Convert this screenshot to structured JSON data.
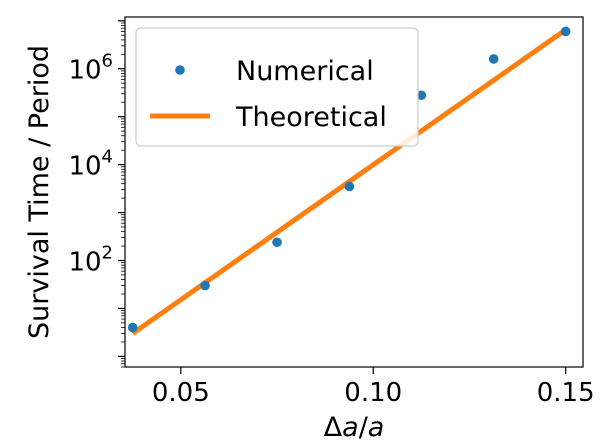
{
  "chart_data": {
    "type": "line",
    "xlabel": "Δa/a",
    "ylabel": "Survival Time / Period",
    "xlim": [
      0.0355,
      0.1545
    ],
    "ylim": [
      0.6,
      12000000
    ],
    "yscale": "log",
    "x_ticks": [
      {
        "value": 0.05,
        "label": "0.05"
      },
      {
        "value": 0.1,
        "label": "0.10"
      },
      {
        "value": 0.15,
        "label": "0.15"
      }
    ],
    "y_ticks": [
      {
        "value": 100,
        "base": "10",
        "exp": "2"
      },
      {
        "value": 10000,
        "base": "10",
        "exp": "4"
      },
      {
        "value": 1000000,
        "base": "10",
        "exp": "6"
      }
    ],
    "legend_position": "top-left",
    "series": [
      {
        "name": "Numerical",
        "kind": "scatter",
        "color": "#1f77b4",
        "points": [
          {
            "x": 0.0375,
            "y": 4
          },
          {
            "x": 0.0563,
            "y": 30
          },
          {
            "x": 0.075,
            "y": 240
          },
          {
            "x": 0.0938,
            "y": 3500
          },
          {
            "x": 0.1125,
            "y": 280000
          },
          {
            "x": 0.1313,
            "y": 1600000
          },
          {
            "x": 0.15,
            "y": 6000000
          }
        ]
      },
      {
        "name": "Theoretical",
        "kind": "line",
        "color": "#ff7f0e",
        "points": [
          {
            "x": 0.0375,
            "y": 3
          },
          {
            "x": 0.15,
            "y": 6500000
          }
        ]
      }
    ]
  }
}
